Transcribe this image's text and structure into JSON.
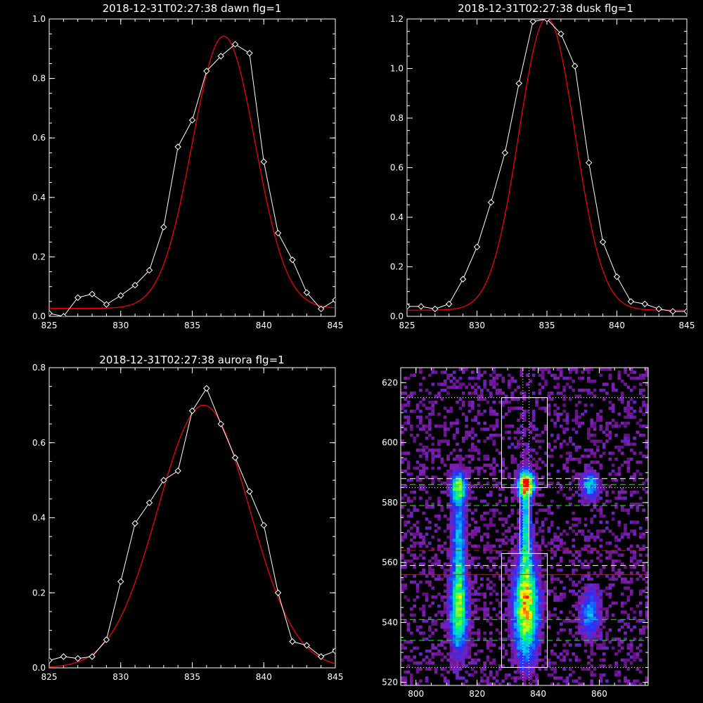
{
  "colors": {
    "background": "#000000",
    "axes": "#ffffff",
    "data": "#ffffff",
    "fit": "#ff0000"
  },
  "chart_data": [
    {
      "type": "line",
      "title": "2018-12-31T02:27:38 dawn flg=1",
      "xlim": [
        825,
        845
      ],
      "ylim": [
        0,
        1.0
      ],
      "xticks": [
        "825",
        "830",
        "835",
        "840",
        "845"
      ],
      "yticks": [
        "0.0",
        "0.2",
        "0.4",
        "0.6",
        "0.8",
        "1.0"
      ],
      "x": [
        825,
        826,
        827,
        828,
        829,
        830,
        831,
        832,
        833,
        834,
        835,
        836,
        837,
        838,
        839,
        840,
        841,
        842,
        843,
        844,
        845
      ],
      "series": [
        {
          "values": [
            0.01,
            0.0,
            0.063,
            0.075,
            0.04,
            0.07,
            0.105,
            0.155,
            0.3,
            0.57,
            0.66,
            0.825,
            0.875,
            0.915,
            0.885,
            0.52,
            0.28,
            0.19,
            0.08,
            0.025,
            0.055
          ],
          "marker": "diamond"
        }
      ],
      "fit": {
        "amplitude": 0.915,
        "center": 837.2,
        "sigma": 2.2,
        "offset": 0.027
      }
    },
    {
      "type": "line",
      "title": "2018-12-31T02:27:38 dusk flg=1",
      "xlim": [
        825,
        845
      ],
      "ylim": [
        0,
        1.2
      ],
      "xticks": [
        "825",
        "830",
        "835",
        "840",
        "845"
      ],
      "yticks": [
        "0.0",
        "0.2",
        "0.4",
        "0.6",
        "0.8",
        "1.0",
        "1.2"
      ],
      "x": [
        825,
        826,
        827,
        828,
        829,
        830,
        831,
        832,
        833,
        834,
        835,
        836,
        837,
        838,
        839,
        840,
        841,
        842,
        843,
        844,
        845
      ],
      "series": [
        {
          "values": [
            0.04,
            0.04,
            0.03,
            0.05,
            0.15,
            0.28,
            0.46,
            0.66,
            0.94,
            1.19,
            1.2,
            1.14,
            1.01,
            0.62,
            0.3,
            0.16,
            0.06,
            0.05,
            0.03,
            0.02,
            0.02
          ],
          "marker": "diamond"
        }
      ],
      "fit": {
        "amplitude": 1.18,
        "center": 835.0,
        "sigma": 2.0,
        "offset": 0.025
      }
    },
    {
      "type": "line",
      "title": "2018-12-31T02:27:38 aurora flg=1",
      "xlim": [
        825,
        845
      ],
      "ylim": [
        0,
        0.8
      ],
      "xticks": [
        "825",
        "830",
        "835",
        "840",
        "845"
      ],
      "yticks": [
        "0.0",
        "0.2",
        "0.4",
        "0.6",
        "0.8"
      ],
      "x": [
        825,
        826,
        827,
        828,
        829,
        830,
        831,
        832,
        833,
        834,
        835,
        836,
        837,
        838,
        839,
        840,
        841,
        842,
        843,
        844,
        845
      ],
      "series": [
        {
          "values": [
            0.02,
            0.03,
            0.025,
            0.03,
            0.075,
            0.23,
            0.385,
            0.44,
            0.5,
            0.525,
            0.685,
            0.745,
            0.65,
            0.56,
            0.47,
            0.38,
            0.2,
            0.07,
            0.06,
            0.03,
            0.045
          ],
          "marker": "diamond"
        }
      ],
      "fit": {
        "amplitude": 0.7,
        "center": 835.8,
        "sigma": 3.2,
        "offset": 0.0
      }
    },
    {
      "type": "heatmap",
      "xlim": [
        795,
        876
      ],
      "ylim": [
        519,
        625
      ],
      "xticks": [
        {
          "v": 800,
          "label": "800"
        },
        {
          "v": 820,
          "label": "820"
        },
        {
          "v": 840,
          "label": "840"
        },
        {
          "v": 860,
          "label": "860"
        }
      ],
      "yticks": [
        {
          "v": 520,
          "label": "520"
        },
        {
          "v": 540,
          "label": "540"
        },
        {
          "v": 560,
          "label": "560"
        },
        {
          "v": 580,
          "label": "580"
        },
        {
          "v": 600,
          "label": "600"
        },
        {
          "v": 620,
          "label": "620"
        }
      ],
      "colormap": [
        "#000000",
        "#4a0060",
        "#8020b0",
        "#2030ff",
        "#00c0ff",
        "#00ff60",
        "#ffff00",
        "#ff0000"
      ],
      "sources": [
        {
          "x": 814,
          "y": 585,
          "sx": 1.6,
          "sy": 3,
          "amp": 0.55
        },
        {
          "x": 814,
          "y": 544,
          "sx": 1.8,
          "sy": 8,
          "amp": 0.5
        },
        {
          "x": 814,
          "y": 565,
          "sx": 1.4,
          "sy": 12,
          "amp": 0.3
        },
        {
          "x": 836,
          "y": 586,
          "sx": 1.6,
          "sy": 2.5,
          "amp": 1.0
        },
        {
          "x": 836,
          "y": 545,
          "sx": 2.4,
          "sy": 10,
          "amp": 0.72
        },
        {
          "x": 836,
          "y": 570,
          "sx": 1.0,
          "sy": 12,
          "amp": 0.38
        },
        {
          "x": 857,
          "y": 586,
          "sx": 1.8,
          "sy": 3,
          "amp": 0.3
        },
        {
          "x": 857,
          "y": 543,
          "sx": 2.0,
          "sy": 5,
          "amp": 0.25
        }
      ],
      "boxes": [
        {
          "x0": 828,
          "x1": 843,
          "y0": 585,
          "y1": 615,
          "color": "#ffffff"
        },
        {
          "x0": 828,
          "x1": 843,
          "y0": 525,
          "y1": 563,
          "color": "#ffffff"
        },
        {
          "x0": 834,
          "x1": 837,
          "y0": 563,
          "y1": 585,
          "color": "#ffffff"
        }
      ],
      "hlines": [
        {
          "y": 615,
          "style": "dotted",
          "color": "#ffffff"
        },
        {
          "y": 525,
          "style": "dotted",
          "color": "#ffffff"
        },
        {
          "y": 585,
          "style": "dotted",
          "color": "#ffffff"
        },
        {
          "y": 588,
          "style": "dashed",
          "color": "#ffffff"
        },
        {
          "y": 586,
          "style": "dashed",
          "color": "#00ff00"
        },
        {
          "y": 579,
          "style": "dashed",
          "color": "#00ff00"
        },
        {
          "y": 564,
          "style": "dashed",
          "color": "#ff0000"
        },
        {
          "y": 559,
          "style": "dashed",
          "color": "#ffffff"
        },
        {
          "y": 556,
          "style": "solid",
          "color": "#ff0000"
        },
        {
          "y": 541,
          "style": "dashed",
          "color": "#00ff00"
        },
        {
          "y": 534,
          "style": "dashed",
          "color": "#00ff00"
        }
      ],
      "vlines": [
        {
          "x": 835,
          "style": "dotted",
          "color": "#ffffff"
        },
        {
          "x": 837,
          "style": "dotted",
          "color": "#ffffff"
        }
      ]
    }
  ]
}
